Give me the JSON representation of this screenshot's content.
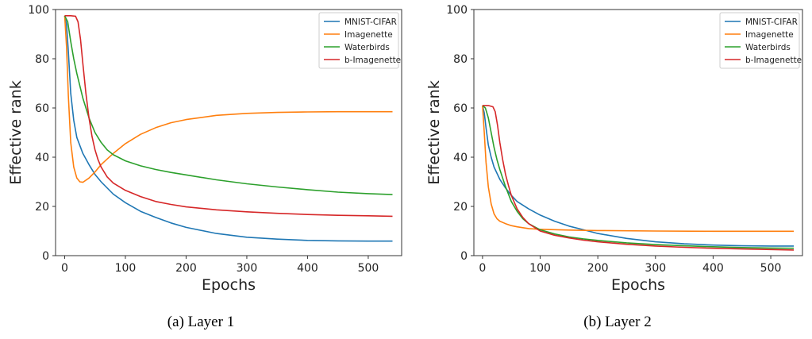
{
  "chart_data": [
    {
      "type": "line",
      "caption": "(a) Layer 1",
      "xlabel": "Epochs",
      "ylabel": "Effective rank",
      "xlim": [
        -15,
        555
      ],
      "ylim": [
        0,
        100
      ],
      "xticks": [
        0,
        100,
        200,
        300,
        400,
        500
      ],
      "yticks": [
        0,
        20,
        40,
        60,
        80,
        100
      ],
      "grid": false,
      "legend": "top-right",
      "series": [
        {
          "name": "MNIST-CIFAR",
          "color": "#1f77b4",
          "points": [
            [
              0,
              97.5
            ],
            [
              3,
              94
            ],
            [
              6,
              83
            ],
            [
              10,
              66
            ],
            [
              15,
              55
            ],
            [
              20,
              48
            ],
            [
              30,
              41.5
            ],
            [
              40,
              37
            ],
            [
              50,
              33
            ],
            [
              60,
              30
            ],
            [
              80,
              25
            ],
            [
              100,
              21.5
            ],
            [
              125,
              18
            ],
            [
              150,
              15.5
            ],
            [
              175,
              13.3
            ],
            [
              200,
              11.5
            ],
            [
              250,
              9
            ],
            [
              300,
              7.5
            ],
            [
              350,
              6.7
            ],
            [
              400,
              6.2
            ],
            [
              450,
              6
            ],
            [
              500,
              5.9
            ],
            [
              540,
              5.9
            ]
          ]
        },
        {
          "name": "Imagenette",
          "color": "#ff7f0e",
          "points": [
            [
              0,
              97.5
            ],
            [
              3,
              85
            ],
            [
              6,
              65
            ],
            [
              10,
              46
            ],
            [
              15,
              36
            ],
            [
              20,
              31.5
            ],
            [
              25,
              30
            ],
            [
              30,
              29.8
            ],
            [
              40,
              31.5
            ],
            [
              50,
              34
            ],
            [
              60,
              37
            ],
            [
              80,
              41.5
            ],
            [
              100,
              45.5
            ],
            [
              125,
              49.3
            ],
            [
              150,
              52
            ],
            [
              175,
              54
            ],
            [
              200,
              55.3
            ],
            [
              250,
              57
            ],
            [
              300,
              57.8
            ],
            [
              350,
              58.2
            ],
            [
              400,
              58.4
            ],
            [
              450,
              58.5
            ],
            [
              500,
              58.5
            ],
            [
              540,
              58.5
            ]
          ]
        },
        {
          "name": "Waterbirds",
          "color": "#2ca02c",
          "points": [
            [
              0,
              97.5
            ],
            [
              5,
              95
            ],
            [
              10,
              87
            ],
            [
              15,
              80
            ],
            [
              20,
              74
            ],
            [
              30,
              64
            ],
            [
              40,
              56
            ],
            [
              50,
              50
            ],
            [
              60,
              46
            ],
            [
              70,
              43
            ],
            [
              80,
              41
            ],
            [
              100,
              38.5
            ],
            [
              125,
              36.5
            ],
            [
              150,
              35
            ],
            [
              175,
              33.8
            ],
            [
              200,
              32.8
            ],
            [
              250,
              30.8
            ],
            [
              300,
              29.2
            ],
            [
              350,
              27.9
            ],
            [
              400,
              26.8
            ],
            [
              450,
              25.8
            ],
            [
              500,
              25.2
            ],
            [
              540,
              24.8
            ]
          ]
        },
        {
          "name": "b-Imagenette",
          "color": "#d62728",
          "points": [
            [
              0,
              97.5
            ],
            [
              10,
              97.5
            ],
            [
              18,
              97.3
            ],
            [
              22,
              95
            ],
            [
              26,
              88
            ],
            [
              30,
              78
            ],
            [
              35,
              66
            ],
            [
              40,
              56
            ],
            [
              45,
              48.5
            ],
            [
              50,
              43
            ],
            [
              55,
              39
            ],
            [
              60,
              36
            ],
            [
              70,
              32
            ],
            [
              80,
              29.5
            ],
            [
              100,
              26.5
            ],
            [
              125,
              24
            ],
            [
              150,
              22
            ],
            [
              175,
              20.8
            ],
            [
              200,
              19.8
            ],
            [
              250,
              18.6
            ],
            [
              300,
              17.8
            ],
            [
              350,
              17.2
            ],
            [
              400,
              16.7
            ],
            [
              450,
              16.4
            ],
            [
              500,
              16.2
            ],
            [
              540,
              16
            ]
          ]
        }
      ]
    },
    {
      "type": "line",
      "caption": "(b) Layer 2",
      "xlabel": "Epochs",
      "ylabel": "Effective rank",
      "xlim": [
        -15,
        555
      ],
      "ylim": [
        0,
        100
      ],
      "xticks": [
        0,
        100,
        200,
        300,
        400,
        500
      ],
      "yticks": [
        0,
        20,
        40,
        60,
        80,
        100
      ],
      "grid": false,
      "legend": "top-right",
      "series": [
        {
          "name": "MNIST-CIFAR",
          "color": "#1f77b4",
          "points": [
            [
              0,
              61
            ],
            [
              3,
              58
            ],
            [
              6,
              52
            ],
            [
              10,
              45
            ],
            [
              15,
              40
            ],
            [
              20,
              36
            ],
            [
              30,
              31
            ],
            [
              40,
              27.5
            ],
            [
              50,
              24.5
            ],
            [
              60,
              22
            ],
            [
              80,
              19
            ],
            [
              100,
              16.5
            ],
            [
              125,
              14
            ],
            [
              150,
              12
            ],
            [
              175,
              10.5
            ],
            [
              200,
              9
            ],
            [
              250,
              7
            ],
            [
              300,
              5.6
            ],
            [
              350,
              4.8
            ],
            [
              400,
              4.3
            ],
            [
              450,
              4
            ],
            [
              500,
              3.9
            ],
            [
              540,
              3.9
            ]
          ]
        },
        {
          "name": "Imagenette",
          "color": "#ff7f0e",
          "points": [
            [
              0,
              61
            ],
            [
              3,
              50
            ],
            [
              6,
              38
            ],
            [
              10,
              28
            ],
            [
              15,
              21
            ],
            [
              20,
              17
            ],
            [
              25,
              15
            ],
            [
              30,
              14
            ],
            [
              40,
              13
            ],
            [
              50,
              12.2
            ],
            [
              60,
              11.7
            ],
            [
              80,
              11
            ],
            [
              100,
              10.7
            ],
            [
              150,
              10.4
            ],
            [
              200,
              10.2
            ],
            [
              300,
              10
            ],
            [
              400,
              9.9
            ],
            [
              500,
              9.9
            ],
            [
              540,
              9.9
            ]
          ]
        },
        {
          "name": "Waterbirds",
          "color": "#2ca02c",
          "points": [
            [
              0,
              61
            ],
            [
              5,
              60
            ],
            [
              10,
              56
            ],
            [
              15,
              50
            ],
            [
              20,
              44
            ],
            [
              25,
              39
            ],
            [
              30,
              35
            ],
            [
              40,
              28
            ],
            [
              50,
              22
            ],
            [
              60,
              18
            ],
            [
              70,
              15
            ],
            [
              80,
              13
            ],
            [
              100,
              10.5
            ],
            [
              125,
              8.8
            ],
            [
              150,
              7.6
            ],
            [
              175,
              6.8
            ],
            [
              200,
              6.2
            ],
            [
              250,
              5.2
            ],
            [
              300,
              4.5
            ],
            [
              350,
              4
            ],
            [
              400,
              3.6
            ],
            [
              450,
              3.3
            ],
            [
              500,
              3.1
            ],
            [
              540,
              3
            ]
          ]
        },
        {
          "name": "b-Imagenette",
          "color": "#d62728",
          "points": [
            [
              0,
              61
            ],
            [
              10,
              61
            ],
            [
              18,
              60.5
            ],
            [
              22,
              58.5
            ],
            [
              26,
              53
            ],
            [
              30,
              46
            ],
            [
              35,
              39
            ],
            [
              40,
              33
            ],
            [
              45,
              28.5
            ],
            [
              50,
              24.5
            ],
            [
              60,
              19
            ],
            [
              70,
              15.5
            ],
            [
              80,
              13
            ],
            [
              100,
              10
            ],
            [
              125,
              8.3
            ],
            [
              150,
              7.2
            ],
            [
              175,
              6.3
            ],
            [
              200,
              5.6
            ],
            [
              250,
              4.6
            ],
            [
              300,
              3.9
            ],
            [
              350,
              3.4
            ],
            [
              400,
              3
            ],
            [
              450,
              2.7
            ],
            [
              500,
              2.5
            ],
            [
              540,
              2.3
            ]
          ]
        }
      ]
    }
  ]
}
